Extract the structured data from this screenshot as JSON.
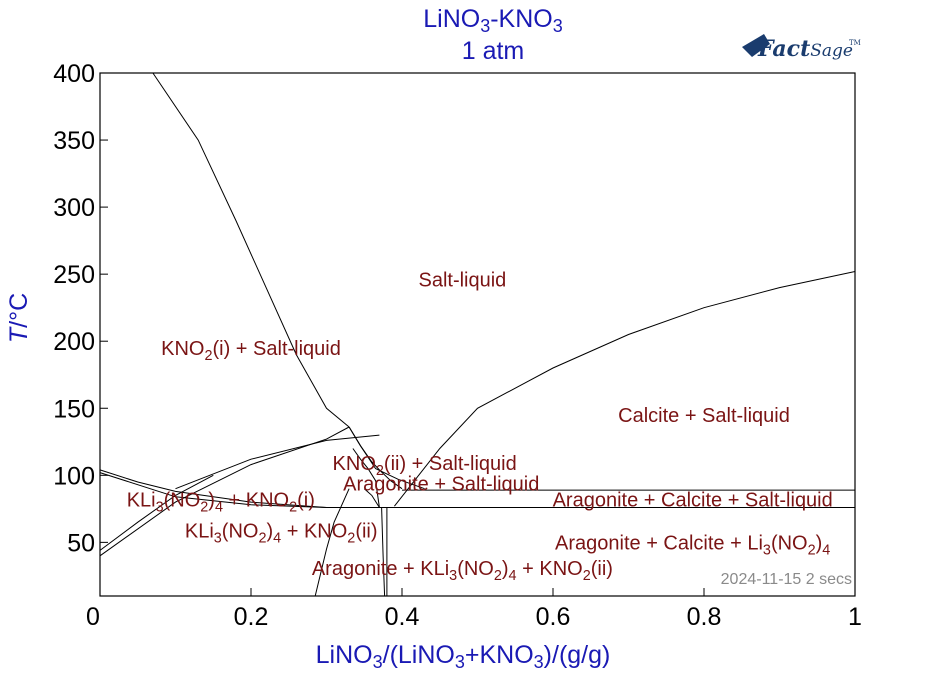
{
  "chart_data": {
    "type": "phase-diagram",
    "title": "LiNO3-KNO3",
    "title_parts": [
      "LiNO",
      "3",
      "-KNO",
      "3"
    ],
    "subtitle": "1 atm",
    "xlabel": "LiNO3/(LiNO3+KNO3)/(g/g)",
    "xlabel_parts": [
      {
        "t": "LiNO",
        "sub": false
      },
      {
        "t": "3",
        "sub": true
      },
      {
        "t": "/(LiNO",
        "sub": false
      },
      {
        "t": "3",
        "sub": true
      },
      {
        "t": "+KNO",
        "sub": false
      },
      {
        "t": "3",
        "sub": true
      },
      {
        "t": ")/(g/g)",
        "sub": false
      }
    ],
    "ylabel": "T/°C",
    "ylabel_parts": [
      {
        "t": "T",
        "italic": true
      },
      {
        "t": "/°C",
        "italic": false
      }
    ],
    "xlim": [
      0,
      1
    ],
    "ylim": [
      10,
      400
    ],
    "xticks": [
      0,
      0.2,
      0.4,
      0.6,
      0.8,
      1
    ],
    "xtick_labels": [
      "0",
      "0.2",
      "0.4",
      "0.6",
      "0.8",
      "1"
    ],
    "yticks": [
      50,
      100,
      150,
      200,
      250,
      300,
      350,
      400
    ],
    "ytick_labels": [
      "50",
      "100",
      "150",
      "200",
      "250",
      "300",
      "350",
      "400"
    ],
    "grid": false,
    "logo_text": "FactSage",
    "logo_tm": "TM",
    "timestamp": "2024-11-15  2 secs",
    "colors": {
      "title": "#1a1ab4",
      "region": "#7a1414",
      "line": "#000000",
      "stamp": "#8a8a8a"
    },
    "boundaries": [
      {
        "name": "liquidus-kno2",
        "x": [
          0.07,
          0.13,
          0.18,
          0.22,
          0.26,
          0.3,
          0.33
        ],
        "y": [
          400,
          350,
          290,
          240,
          190,
          150,
          136
        ]
      },
      {
        "name": "liquidus-kno2-ii",
        "x": [
          0.33,
          0.345,
          0.36,
          0.37
        ],
        "y": [
          136,
          122,
          110,
          104
        ]
      },
      {
        "name": "liquidus-aragonite",
        "x": [
          0.37,
          0.385,
          0.4
        ],
        "y": [
          104,
          96,
          90
        ]
      },
      {
        "name": "liquidus-calcite",
        "x": [
          0.39,
          0.45,
          0.5,
          0.6,
          0.7,
          0.8,
          0.9,
          1.0
        ],
        "y": [
          77,
          120,
          150,
          180,
          205,
          225,
          240,
          252
        ]
      },
      {
        "name": "liquid-kno2-ii-upper",
        "x": [
          0.33,
          0.345,
          0.365,
          0.395,
          0.43
        ],
        "y": [
          136,
          122,
          105,
          97,
          90
        ]
      },
      {
        "name": "kno2-transition-left",
        "x": [
          0,
          0.1,
          0.2,
          0.3,
          0.33
        ],
        "y": [
          40,
          80,
          108,
          127,
          136
        ]
      },
      {
        "name": "kno2-transition-mid",
        "x": [
          0.1,
          0.2,
          0.3,
          0.37
        ],
        "y": [
          90,
          112,
          126,
          130
        ]
      },
      {
        "name": "kli3-left-a",
        "x": [
          0,
          0.05,
          0.1,
          0.15
        ],
        "y": [
          44,
          65,
          85,
          100
        ]
      },
      {
        "name": "kli3-upper",
        "x": [
          0,
          0.05,
          0.1,
          0.2,
          0.3,
          0.365
        ],
        "y": [
          104,
          95,
          88,
          80,
          76,
          76
        ]
      },
      {
        "name": "kli3-lower",
        "x": [
          0,
          0.1,
          0.2,
          0.3,
          0.39
        ],
        "y": [
          102,
          84,
          78,
          76,
          76
        ]
      },
      {
        "name": "eutectic-line",
        "x": [
          0.3,
          0.39,
          0.6,
          0.8,
          1.0
        ],
        "y": [
          76,
          76,
          76,
          76,
          76
        ]
      },
      {
        "name": "aragonite-calcite-line",
        "x": [
          0.4,
          0.6,
          0.8,
          1.0
        ],
        "y": [
          89,
          89,
          89,
          89
        ]
      },
      {
        "name": "aragonite-solvus-a",
        "x": [
          0.285,
          0.3,
          0.31,
          0.33
        ],
        "y": [
          10,
          45,
          65,
          90
        ]
      },
      {
        "name": "aragonite-solvus-b",
        "x": [
          0.335,
          0.345,
          0.355,
          0.365,
          0.37
        ],
        "y": [
          120,
          112,
          105,
          96,
          76
        ]
      },
      {
        "name": "vertical-a",
        "x": [
          0.373,
          0.375,
          0.377
        ],
        "y": [
          76,
          40,
          10
        ]
      },
      {
        "name": "vertical-b",
        "x": [
          0.38,
          0.38,
          0.38
        ],
        "y": [
          76,
          40,
          10
        ]
      },
      {
        "name": "aragonite-left",
        "x": [
          0.35,
          0.36,
          0.37
        ],
        "y": [
          90,
          85,
          76
        ]
      }
    ],
    "annotations": [
      {
        "text": "Salt-liquid",
        "x": 0.48,
        "y": 246,
        "parts": [
          {
            "t": "Salt-liquid",
            "sub": false
          }
        ]
      },
      {
        "text": "KNO2(i) + Salt-liquid",
        "x": 0.2,
        "y": 195,
        "parts": [
          {
            "t": "KNO",
            "sub": false
          },
          {
            "t": "2",
            "sub": true
          },
          {
            "t": "(i) + Salt-liquid",
            "sub": false
          }
        ]
      },
      {
        "text": "Calcite + Salt-liquid",
        "x": 0.8,
        "y": 145,
        "parts": [
          {
            "t": "Calcite + Salt-liquid",
            "sub": false
          }
        ]
      },
      {
        "text": "KNO2(ii) + Salt-liquid",
        "x": 0.43,
        "y": 109,
        "parts": [
          {
            "t": "KNO",
            "sub": false
          },
          {
            "t": "2",
            "sub": true
          },
          {
            "t": "(ii) + Salt-liquid",
            "sub": false
          }
        ]
      },
      {
        "text": "Aragonite + Salt-liquid",
        "x": 0.452,
        "y": 94,
        "parts": [
          {
            "t": "Aragonite + Salt-liquid",
            "sub": false
          }
        ]
      },
      {
        "text": "KLi3(NO2)4 + KNO2(i)",
        "x": 0.16,
        "y": 82,
        "parts": [
          {
            "t": "KLi",
            "sub": false
          },
          {
            "t": "3",
            "sub": true
          },
          {
            "t": "(NO",
            "sub": false
          },
          {
            "t": "2",
            "sub": true
          },
          {
            "t": ")",
            "sub": false
          },
          {
            "t": "4",
            "sub": true
          },
          {
            "t": " + KNO",
            "sub": false
          },
          {
            "t": "2",
            "sub": true
          },
          {
            "t": "(i)",
            "sub": false
          }
        ]
      },
      {
        "text": "Aragonite + Calcite + Salt-liquid",
        "x": 0.785,
        "y": 82,
        "parts": [
          {
            "t": "Aragonite + Calcite + Salt-liquid",
            "sub": false
          }
        ]
      },
      {
        "text": "KLi3(NO2)4  + KNO2(ii)",
        "x": 0.24,
        "y": 59,
        "parts": [
          {
            "t": "KLi",
            "sub": false
          },
          {
            "t": "3",
            "sub": true
          },
          {
            "t": "(NO",
            "sub": false
          },
          {
            "t": "2",
            "sub": true
          },
          {
            "t": ")",
            "sub": false
          },
          {
            "t": "4",
            "sub": true
          },
          {
            "t": "  + KNO",
            "sub": false
          },
          {
            "t": "2",
            "sub": true
          },
          {
            "t": "(ii)",
            "sub": false
          }
        ]
      },
      {
        "text": "Aragonite + Calcite + Li3(NO2)4",
        "x": 0.785,
        "y": 50,
        "parts": [
          {
            "t": "Aragonite + Calcite + Li",
            "sub": false
          },
          {
            "t": "3",
            "sub": true
          },
          {
            "t": "(NO",
            "sub": false
          },
          {
            "t": "2",
            "sub": true
          },
          {
            "t": ")",
            "sub": false
          },
          {
            "t": "4",
            "sub": true
          }
        ]
      },
      {
        "text": "Aragonite + KLi3(NO2)4  + KNO2(ii)",
        "x": 0.48,
        "y": 31,
        "parts": [
          {
            "t": "Aragonite + KLi",
            "sub": false
          },
          {
            "t": "3",
            "sub": true
          },
          {
            "t": "(NO",
            "sub": false
          },
          {
            "t": "2",
            "sub": true
          },
          {
            "t": ")",
            "sub": false
          },
          {
            "t": "4",
            "sub": true
          },
          {
            "t": "  + KNO",
            "sub": false
          },
          {
            "t": "2",
            "sub": true
          },
          {
            "t": "(ii)",
            "sub": false
          }
        ]
      }
    ]
  }
}
